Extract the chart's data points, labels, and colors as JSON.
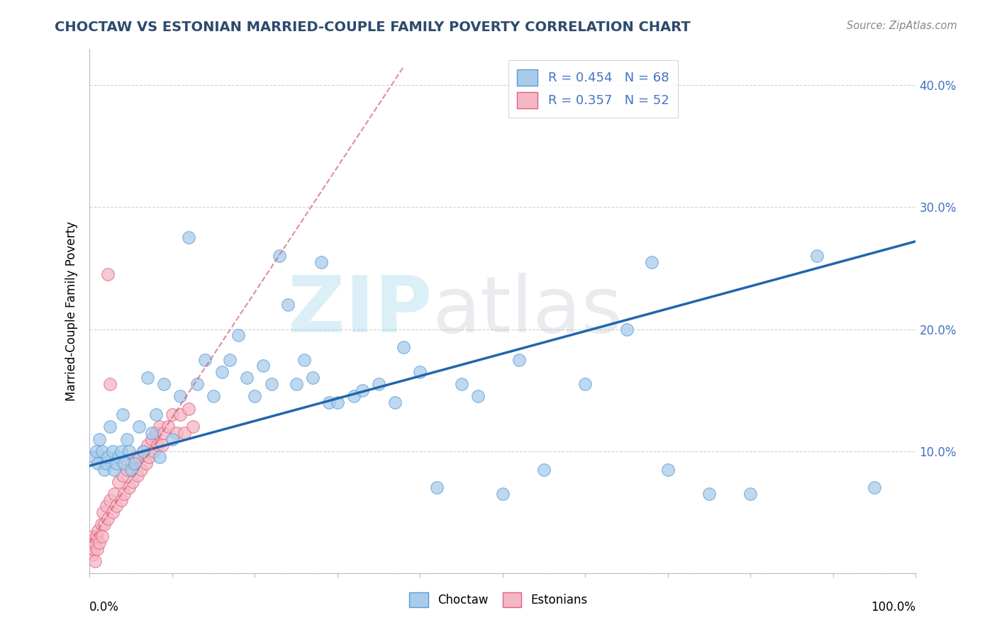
{
  "title": "CHOCTAW VS ESTONIAN MARRIED-COUPLE FAMILY POVERTY CORRELATION CHART",
  "source": "Source: ZipAtlas.com",
  "ylabel": "Married-Couple Family Poverty",
  "xlim": [
    0.0,
    1.0
  ],
  "ylim": [
    0.0,
    0.43
  ],
  "choctaw_R": 0.454,
  "choctaw_N": 68,
  "estonian_R": 0.357,
  "estonian_N": 52,
  "choctaw_color": "#A8CCEA",
  "choctaw_edge_color": "#5B9BD5",
  "estonian_color": "#F4B8C4",
  "estonian_edge_color": "#E06080",
  "choctaw_line_color": "#2166AC",
  "estonian_line_color": "#D06070",
  "background_color": "#FFFFFF",
  "grid_color": "#CCCCCC",
  "title_color": "#2E4A6E",
  "ytick_color": "#4472C4",
  "ytick_vals": [
    0.0,
    0.1,
    0.2,
    0.3,
    0.4
  ],
  "ytick_labels": [
    "",
    "10.0%",
    "20.0%",
    "30.0%",
    "40.0%"
  ],
  "choctaw_line_x0": 0.0,
  "choctaw_line_y0": 0.088,
  "choctaw_line_x1": 1.0,
  "choctaw_line_y1": 0.272,
  "estonian_line_x0": 0.0,
  "estonian_line_y0": 0.025,
  "estonian_line_x1": 0.38,
  "estonian_line_y1": 0.415,
  "choctaw_pts_x": [
    0.005,
    0.008,
    0.01,
    0.012,
    0.015,
    0.018,
    0.02,
    0.022,
    0.025,
    0.028,
    0.03,
    0.032,
    0.035,
    0.038,
    0.04,
    0.042,
    0.045,
    0.048,
    0.05,
    0.055,
    0.06,
    0.065,
    0.07,
    0.075,
    0.08,
    0.085,
    0.09,
    0.1,
    0.11,
    0.12,
    0.13,
    0.14,
    0.15,
    0.16,
    0.17,
    0.18,
    0.19,
    0.2,
    0.21,
    0.22,
    0.23,
    0.24,
    0.25,
    0.26,
    0.27,
    0.28,
    0.29,
    0.3,
    0.32,
    0.33,
    0.35,
    0.37,
    0.38,
    0.4,
    0.42,
    0.45,
    0.47,
    0.5,
    0.52,
    0.55,
    0.6,
    0.65,
    0.68,
    0.7,
    0.75,
    0.8,
    0.88,
    0.95
  ],
  "choctaw_pts_y": [
    0.095,
    0.1,
    0.09,
    0.11,
    0.1,
    0.085,
    0.09,
    0.095,
    0.12,
    0.1,
    0.085,
    0.09,
    0.095,
    0.1,
    0.13,
    0.09,
    0.11,
    0.1,
    0.085,
    0.09,
    0.12,
    0.1,
    0.16,
    0.115,
    0.13,
    0.095,
    0.155,
    0.11,
    0.145,
    0.275,
    0.155,
    0.175,
    0.145,
    0.165,
    0.175,
    0.195,
    0.16,
    0.145,
    0.17,
    0.155,
    0.26,
    0.22,
    0.155,
    0.175,
    0.16,
    0.255,
    0.14,
    0.14,
    0.145,
    0.15,
    0.155,
    0.14,
    0.185,
    0.165,
    0.07,
    0.155,
    0.145,
    0.065,
    0.175,
    0.085,
    0.155,
    0.2,
    0.255,
    0.085,
    0.065,
    0.065,
    0.26,
    0.07
  ],
  "estonian_pts_x": [
    0.002,
    0.003,
    0.004,
    0.005,
    0.006,
    0.007,
    0.008,
    0.009,
    0.01,
    0.012,
    0.014,
    0.015,
    0.016,
    0.018,
    0.02,
    0.022,
    0.025,
    0.028,
    0.03,
    0.032,
    0.035,
    0.038,
    0.04,
    0.042,
    0.045,
    0.048,
    0.05,
    0.052,
    0.055,
    0.058,
    0.06,
    0.062,
    0.065,
    0.068,
    0.07,
    0.072,
    0.075,
    0.078,
    0.08,
    0.082,
    0.085,
    0.088,
    0.09,
    0.095,
    0.1,
    0.105,
    0.11,
    0.115,
    0.12,
    0.125,
    0.022,
    0.025
  ],
  "estonian_pts_y": [
    0.02,
    0.015,
    0.03,
    0.02,
    0.025,
    0.01,
    0.03,
    0.02,
    0.035,
    0.025,
    0.04,
    0.03,
    0.05,
    0.04,
    0.055,
    0.045,
    0.06,
    0.05,
    0.065,
    0.055,
    0.075,
    0.06,
    0.08,
    0.065,
    0.085,
    0.07,
    0.09,
    0.075,
    0.095,
    0.08,
    0.095,
    0.085,
    0.1,
    0.09,
    0.105,
    0.095,
    0.11,
    0.1,
    0.115,
    0.105,
    0.12,
    0.105,
    0.115,
    0.12,
    0.13,
    0.115,
    0.13,
    0.115,
    0.135,
    0.12,
    0.245,
    0.155
  ]
}
